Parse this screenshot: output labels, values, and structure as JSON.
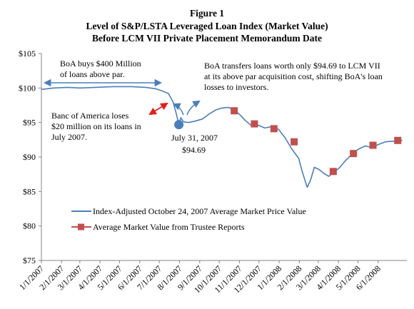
{
  "chart_data": {
    "type": "line",
    "title": "Figure 1",
    "subtitle_lines": [
      "Level of S&P/LSTA Leveraged Loan Index (Market Value)",
      "Before LCM VII Private Placement Memorandum Date"
    ],
    "x_tick_labels": [
      "1/1/2007",
      "2/1/2007",
      "3/1/2007",
      "4/1/2007",
      "5/1/2007",
      "6/1/2007",
      "7/1/2007",
      "8/1/2007",
      "9/1/2007",
      "10/1/2007",
      "11/1/2007",
      "12/1/2007",
      "1/1/2008",
      "2/1/2008",
      "3/1/2008",
      "4/1/2008",
      "5/1/2008",
      "6/1/2008"
    ],
    "y_tick_labels": [
      "$105",
      "$100",
      "$95",
      "$90",
      "$85",
      "$80",
      "$75"
    ],
    "ylim": [
      75,
      105
    ],
    "xlim": [
      "2007-01-01",
      "2008-07-15"
    ],
    "grid": false,
    "legend_position": "lower-left",
    "series": [
      {
        "name": "Index-Adjusted October 24, 2007 Average Market Price Value",
        "kind": "line",
        "color": "#4a7ebb",
        "points": [
          [
            "2007-01-01",
            99.8
          ],
          [
            "2007-01-20",
            100.0
          ],
          [
            "2007-02-10",
            100.1
          ],
          [
            "2007-03-01",
            100.0
          ],
          [
            "2007-03-25",
            100.1
          ],
          [
            "2007-04-20",
            100.2
          ],
          [
            "2007-05-20",
            100.2
          ],
          [
            "2007-06-10",
            100.1
          ],
          [
            "2007-06-25",
            99.9
          ],
          [
            "2007-07-05",
            99.6
          ],
          [
            "2007-07-15",
            99.2
          ],
          [
            "2007-07-22",
            98.0
          ],
          [
            "2007-07-27",
            96.3
          ],
          [
            "2007-07-31",
            94.7
          ],
          [
            "2007-08-03",
            95.7
          ],
          [
            "2007-08-07",
            95.1
          ],
          [
            "2007-08-15",
            95.0
          ],
          [
            "2007-08-25",
            95.2
          ],
          [
            "2007-09-05",
            95.5
          ],
          [
            "2007-09-15",
            96.2
          ],
          [
            "2007-09-25",
            96.8
          ],
          [
            "2007-10-05",
            97.1
          ],
          [
            "2007-10-15",
            97.2
          ],
          [
            "2007-10-24",
            96.8
          ],
          [
            "2007-11-01",
            96.2
          ],
          [
            "2007-11-10",
            95.3
          ],
          [
            "2007-11-20",
            94.5
          ],
          [
            "2007-11-30",
            94.6
          ],
          [
            "2007-12-10",
            94.2
          ],
          [
            "2007-12-20",
            94.4
          ],
          [
            "2007-12-31",
            94.0
          ],
          [
            "2008-01-10",
            92.8
          ],
          [
            "2008-01-20",
            91.2
          ],
          [
            "2008-01-31",
            89.8
          ],
          [
            "2008-02-05",
            88.0
          ],
          [
            "2008-02-10",
            86.5
          ],
          [
            "2008-02-13",
            85.6
          ],
          [
            "2008-02-18",
            86.6
          ],
          [
            "2008-02-24",
            88.5
          ],
          [
            "2008-03-02",
            88.2
          ],
          [
            "2008-03-10",
            87.6
          ],
          [
            "2008-03-17",
            87.2
          ],
          [
            "2008-03-25",
            87.8
          ],
          [
            "2008-04-02",
            88.4
          ],
          [
            "2008-04-12",
            89.5
          ],
          [
            "2008-04-22",
            90.4
          ],
          [
            "2008-05-01",
            91.1
          ],
          [
            "2008-05-12",
            91.6
          ],
          [
            "2008-05-22",
            91.4
          ],
          [
            "2008-06-01",
            91.8
          ],
          [
            "2008-06-12",
            92.2
          ],
          [
            "2008-06-25",
            92.3
          ],
          [
            "2008-07-08",
            92.4
          ]
        ]
      },
      {
        "name": "Average Market Value from Trustee Reports",
        "kind": "markers",
        "color": "#c0504d",
        "points": [
          [
            "2007-10-24",
            96.7
          ],
          [
            "2007-11-24",
            94.8
          ],
          [
            "2007-12-24",
            94.1
          ],
          [
            "2008-01-24",
            92.2
          ],
          [
            "2008-03-24",
            87.9
          ],
          [
            "2008-04-24",
            90.5
          ],
          [
            "2008-05-24",
            91.7
          ],
          [
            "2008-07-01",
            92.4
          ]
        ]
      }
    ],
    "highlight_point": {
      "date": "2007-07-31",
      "value": 94.69,
      "color": "#4a7ebb"
    },
    "annotations": {
      "boa_buys": [
        "BoA  buys $400 Million",
        "of loans above par."
      ],
      "boa_transfers": [
        "BoA  transfers loans worth only $94.69 to LCM VII",
        "at its above par acquisition cost, shifting BoA's loan",
        "losses to investors."
      ],
      "banc_loses": [
        "Banc of America loses",
        "$20 million  on its loans in",
        "July 2007."
      ],
      "point_label": [
        "July 31, 2007",
        "$94.69"
      ]
    },
    "arrow_colors": {
      "blue": "#4a7ebb",
      "red": "#e0201b"
    }
  }
}
